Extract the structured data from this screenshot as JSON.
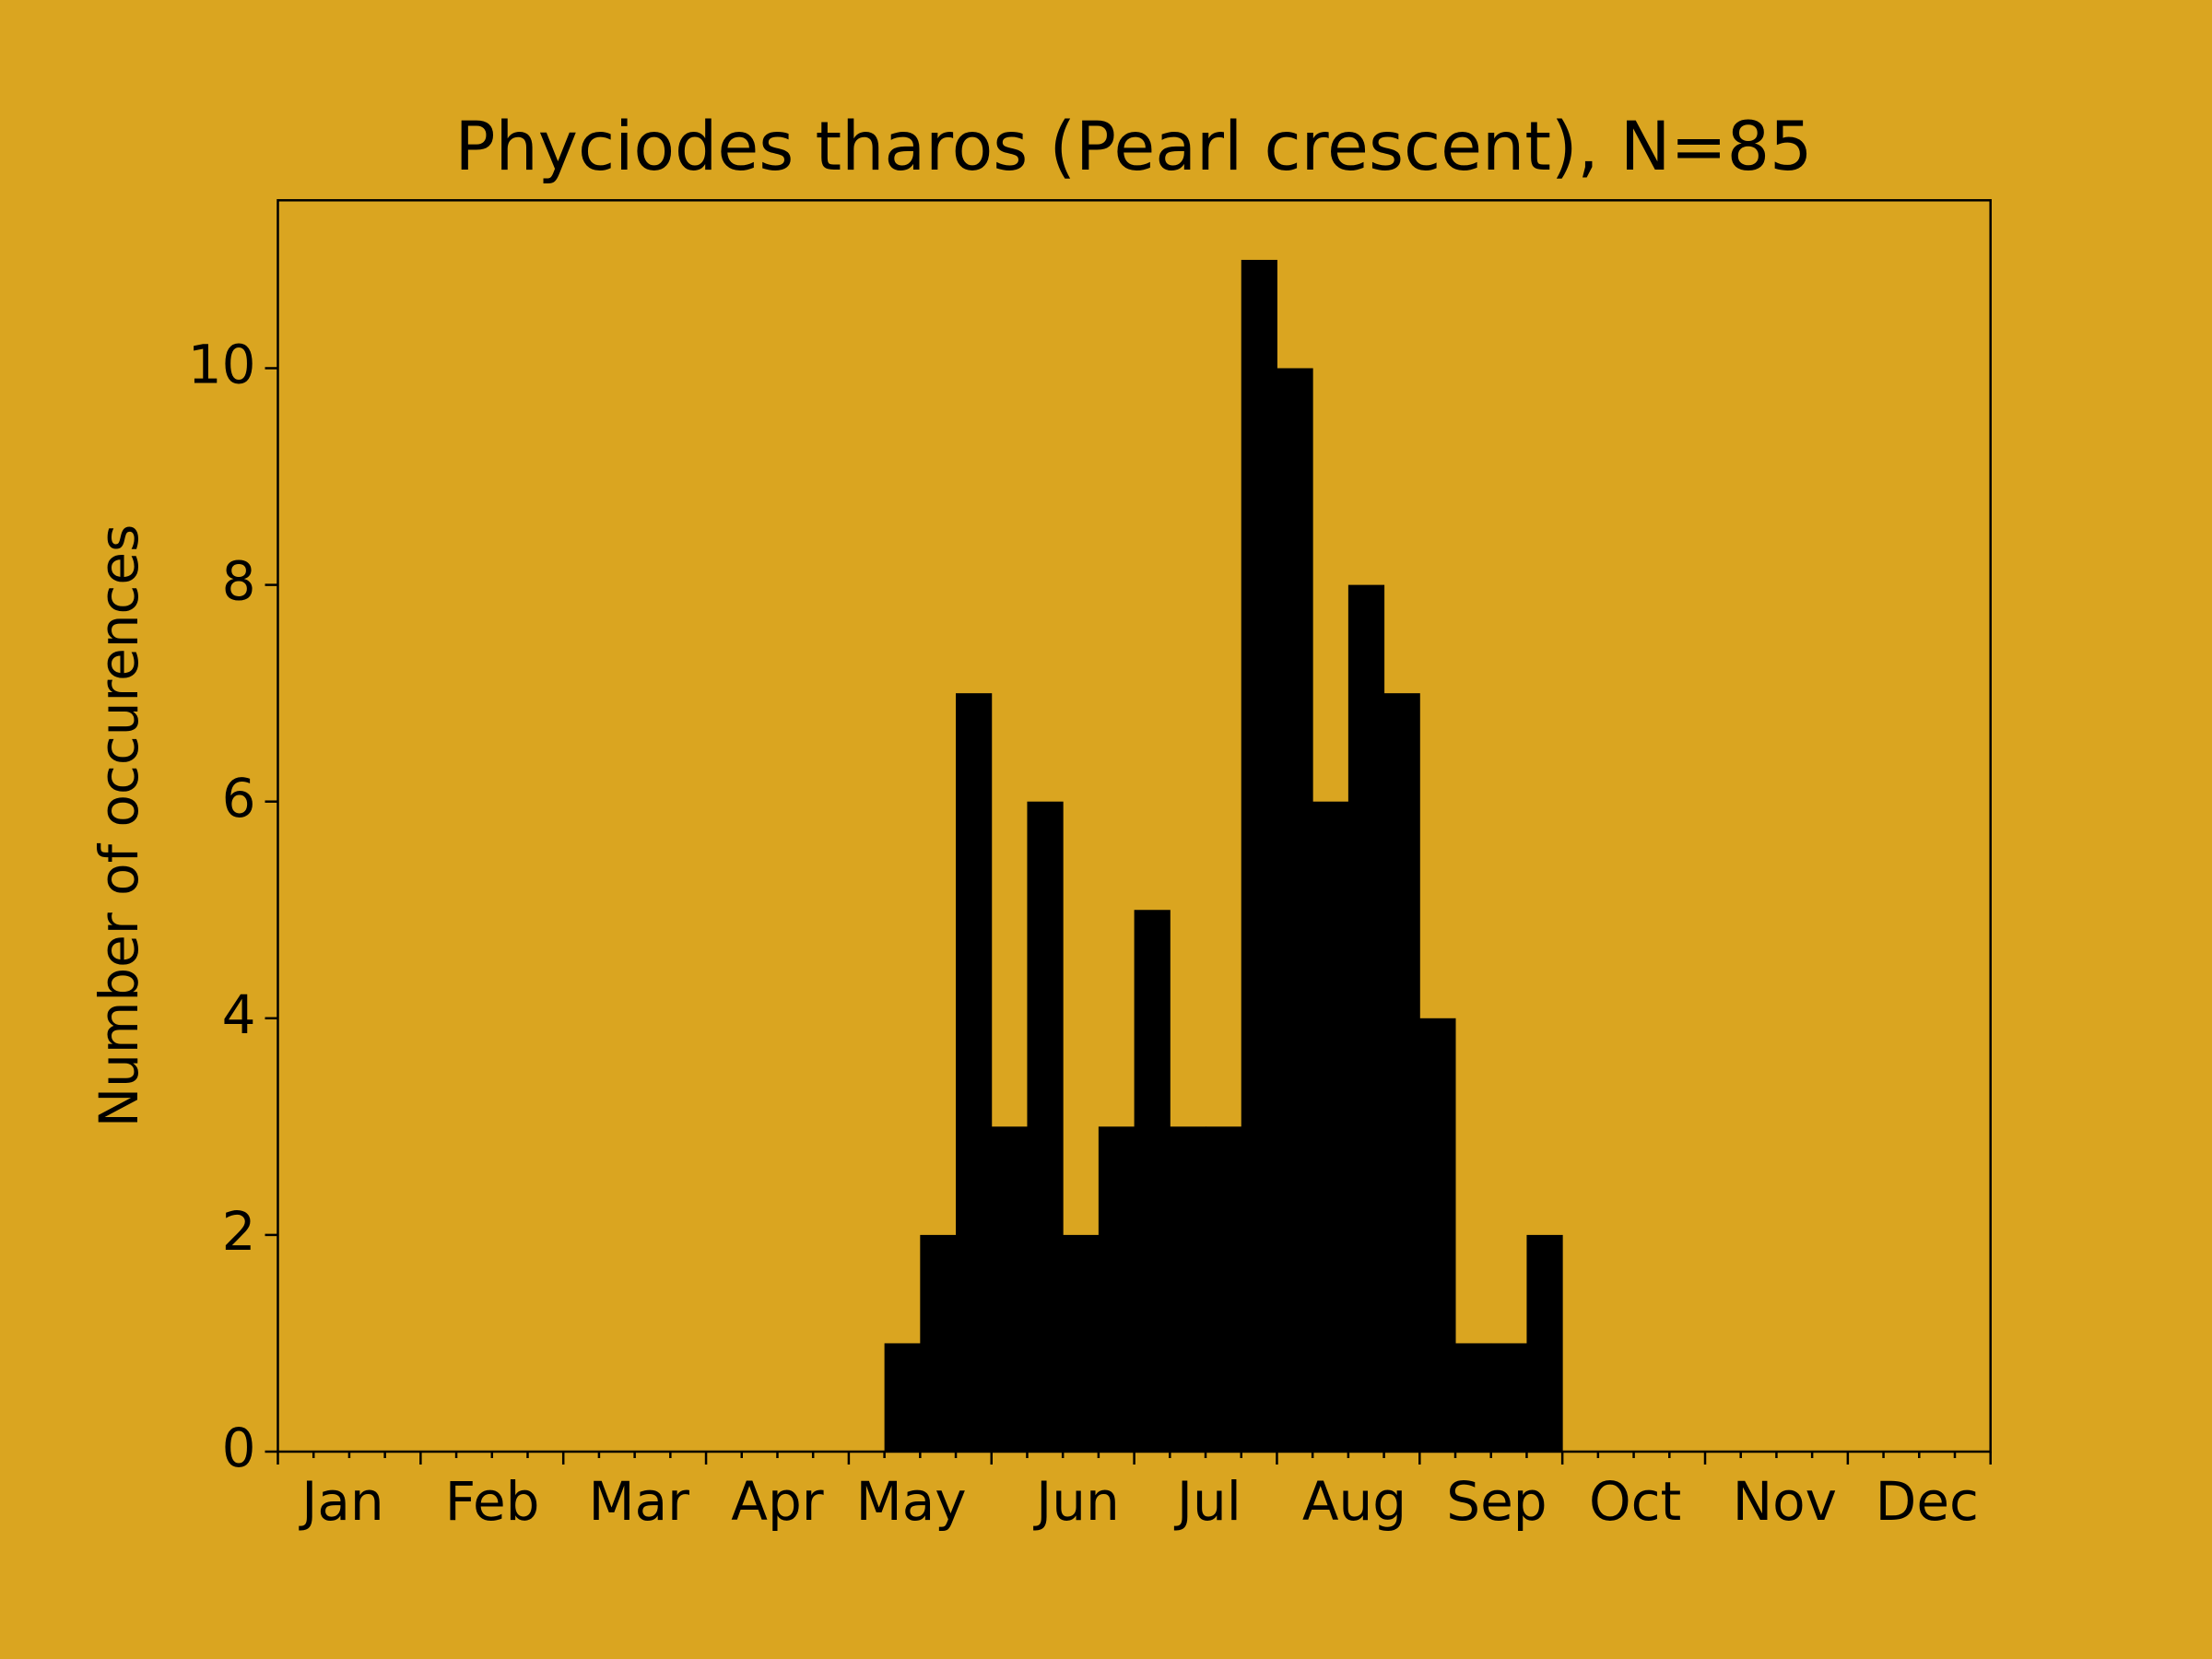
{
  "chart_data": {
    "type": "histogram",
    "title": "Phyciodes tharos (Pearl crescent), N=85",
    "y_label": "Number of occurences",
    "bins": [
      0,
      1,
      2,
      3,
      4,
      5,
      6,
      7,
      8,
      9,
      10,
      11,
      12,
      13,
      14,
      15,
      16,
      17,
      18,
      19,
      20,
      21,
      22,
      23,
      24,
      25,
      26,
      27,
      28,
      29,
      30,
      31,
      32,
      33,
      34,
      35,
      36,
      37,
      38,
      39,
      40,
      41,
      42,
      43,
      44,
      45,
      46,
      47,
      48
    ],
    "values": [
      0,
      0,
      0,
      0,
      0,
      0,
      0,
      0,
      0,
      0,
      0,
      0,
      0,
      0,
      0,
      0,
      0,
      1,
      2,
      7,
      3,
      6,
      2,
      3,
      5,
      3,
      3,
      11,
      10,
      6,
      8,
      7,
      4,
      1,
      1,
      2,
      0,
      0,
      0,
      0,
      0,
      0,
      0,
      0,
      0,
      0,
      0,
      0
    ],
    "color": "#000000",
    "background": "#daa520",
    "xlim": [
      0,
      48
    ],
    "xticks": [
      {
        "value": 1.82,
        "label": "Jan"
      },
      {
        "value": 6.01,
        "label": "Feb"
      },
      {
        "value": 10.12,
        "label": "Mar"
      },
      {
        "value": 14.0,
        "label": "Apr"
      },
      {
        "value": 17.75,
        "label": "May"
      },
      {
        "value": 22.42,
        "label": "Jun"
      },
      {
        "value": 26.1,
        "label": "Jul"
      },
      {
        "value": 30.17,
        "label": "Aug"
      },
      {
        "value": 34.16,
        "label": "Sep"
      },
      {
        "value": 38.04,
        "label": "Oct"
      },
      {
        "value": 42.23,
        "label": "Nov"
      },
      {
        "value": 46.22,
        "label": "Dec"
      }
    ],
    "ylim": [
      0,
      11.55
    ],
    "yticks": [
      0,
      2,
      4,
      6,
      8,
      10
    ]
  }
}
